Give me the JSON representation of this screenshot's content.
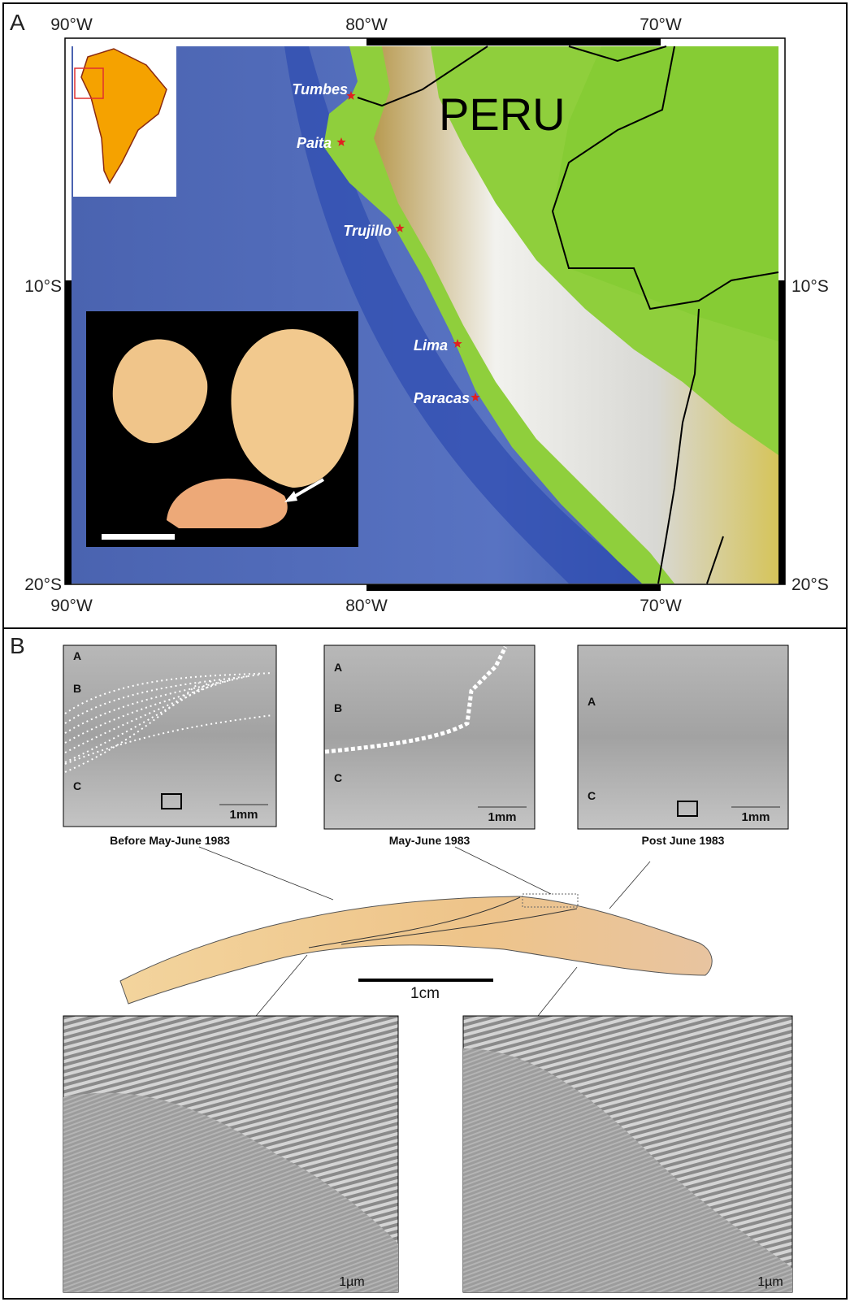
{
  "panel_a": {
    "label": "A",
    "lon_labels_top": [
      "90°W",
      "80°W",
      "70°W"
    ],
    "lon_labels_bottom": [
      "90°W",
      "80°W",
      "70°W"
    ],
    "lat_labels_left": [
      "10°S",
      "20°S"
    ],
    "lat_labels_right": [
      "10°S",
      "20°S"
    ],
    "country": "PERU",
    "cities": [
      "Tumbes",
      "Paita",
      "Trujillo",
      "Lima",
      "Paracas"
    ]
  },
  "panel_b": {
    "label": "B",
    "sem_panels": [
      {
        "zones": [
          "A",
          "B",
          "C"
        ],
        "scale": "1mm",
        "caption": "Before May-June 1983"
      },
      {
        "zones": [
          "A",
          "B",
          "C"
        ],
        "scale": "1mm",
        "caption": "May-June 1983"
      },
      {
        "zones": [
          "A",
          "C"
        ],
        "scale": "1mm",
        "caption": "Post June 1983"
      }
    ],
    "shell_scale": "1cm",
    "micrographs": [
      {
        "scale": "1µm"
      },
      {
        "scale": "1µm"
      }
    ]
  }
}
